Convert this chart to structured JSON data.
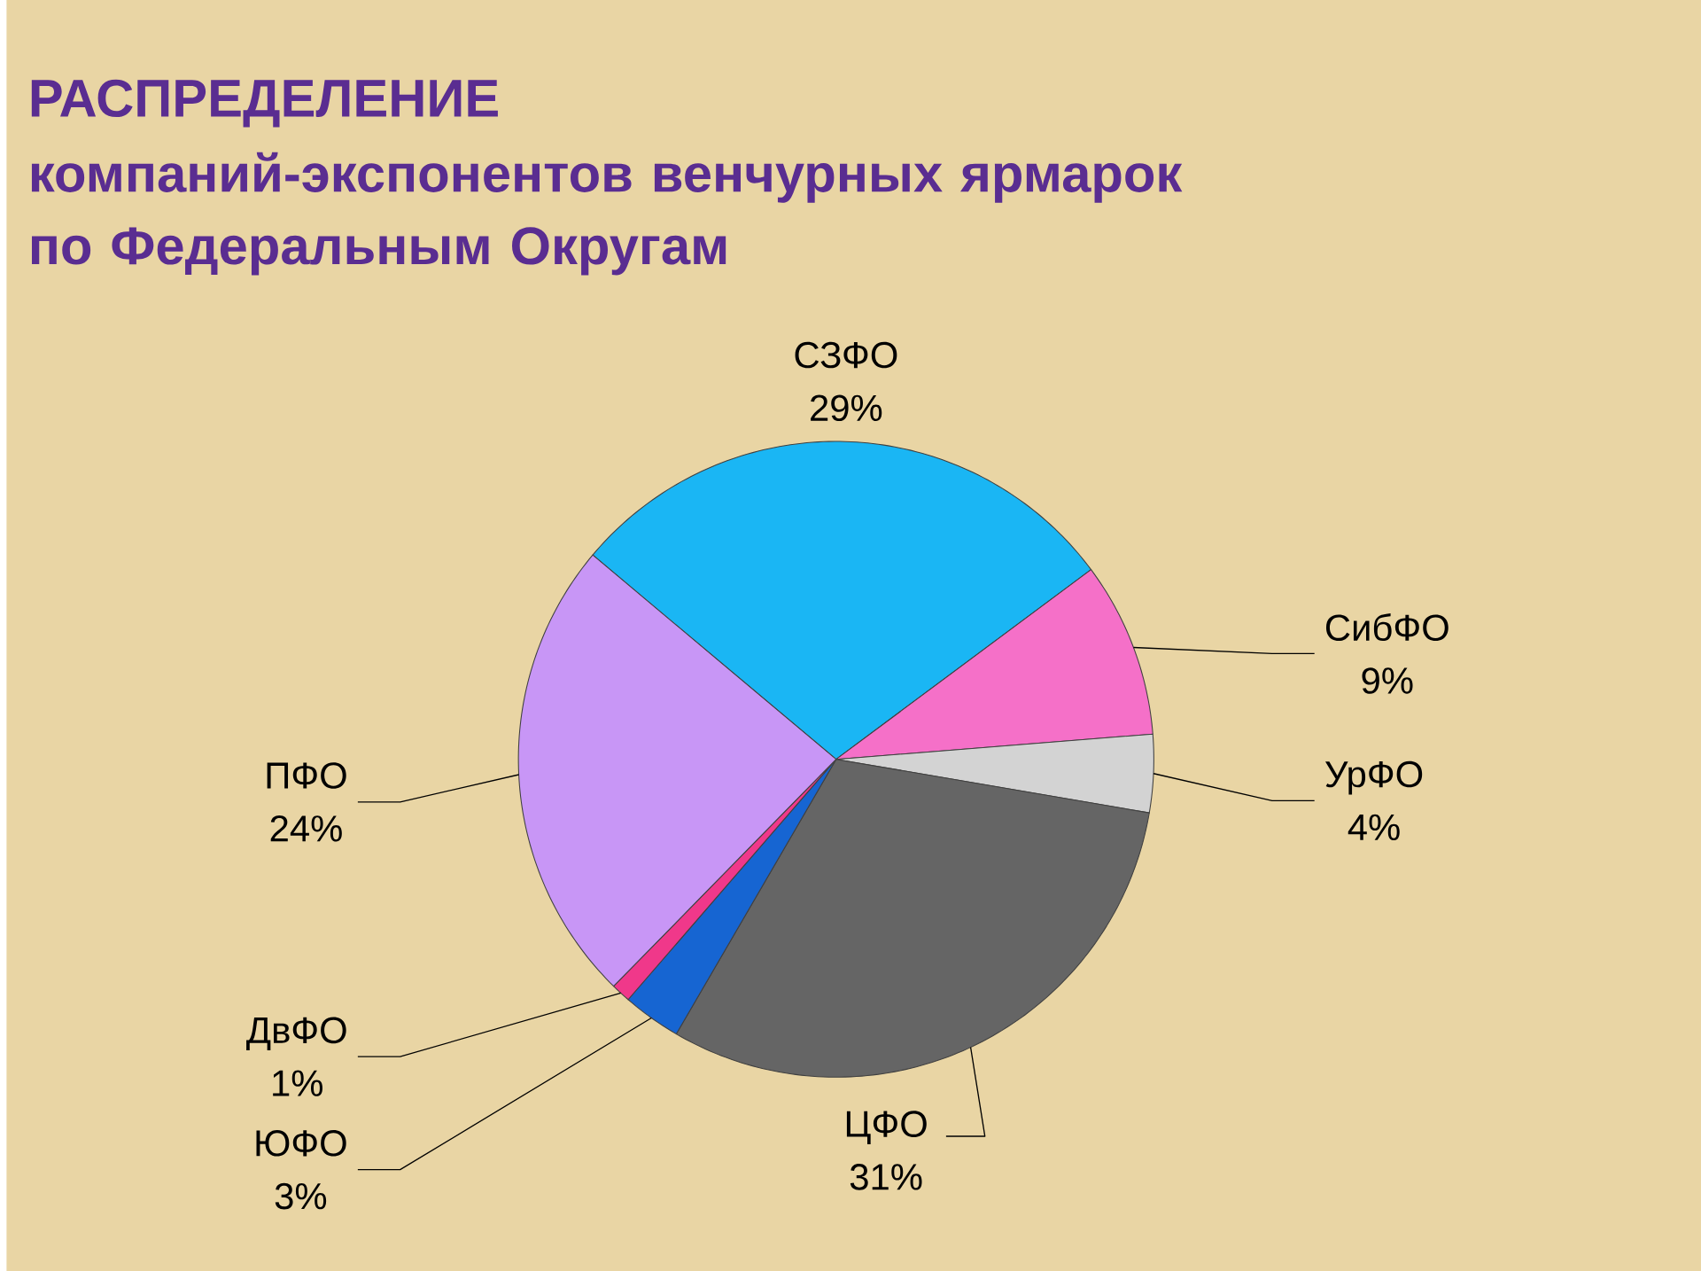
{
  "chart_data": {
    "type": "pie",
    "title": "РАСПРЕДЕЛЕНИЕ",
    "subtitle": "компаний-экспонентов венчурных ярмарок по Федеральным Округам",
    "categories": [
      "СЗФО",
      "СибФО",
      "УрФО",
      "ЦФО",
      "ЮФО",
      "ДвФО",
      "ПФО"
    ],
    "values": [
      29,
      9,
      4,
      31,
      3,
      1,
      24
    ],
    "value_labels": [
      "29%",
      "9%",
      "4%",
      "31%",
      "3%",
      "1%",
      "24%"
    ],
    "colors": [
      "#1ab6f4",
      "#f570c8",
      "#d3d3d3",
      "#656565",
      "#1665d2",
      "#f0388a",
      "#c896f6"
    ]
  }
}
